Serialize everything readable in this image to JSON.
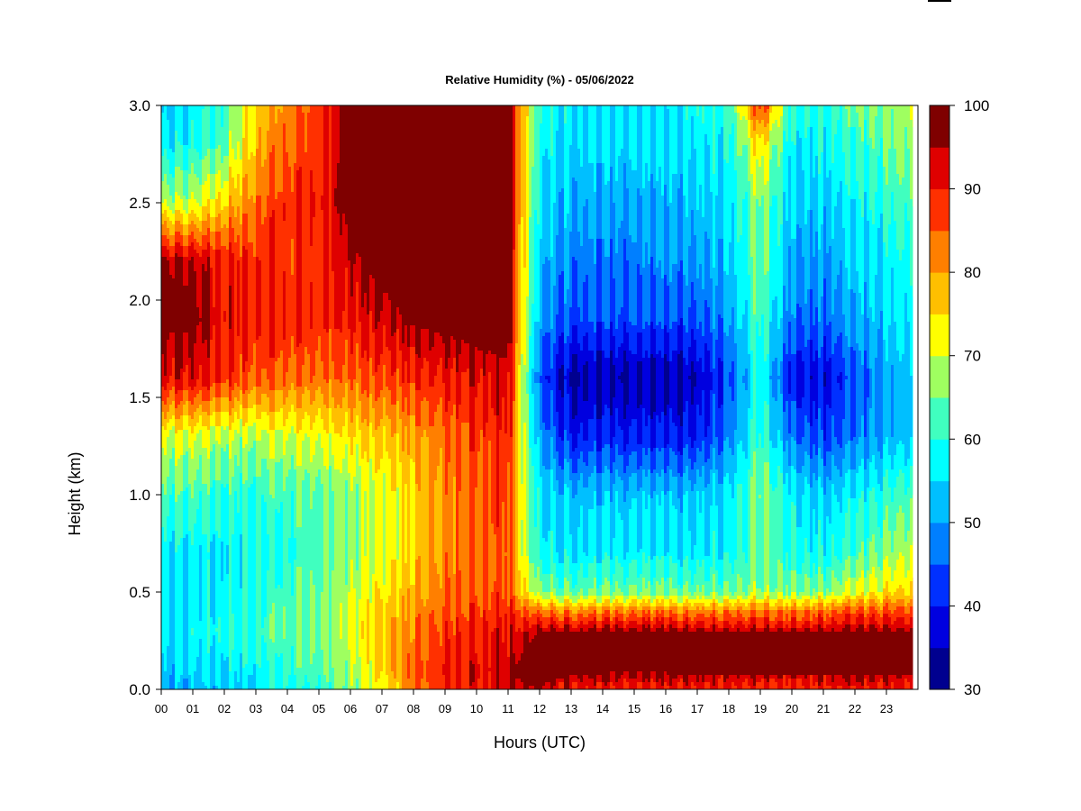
{
  "chart_data": {
    "type": "heatmap",
    "title": "Relative Humidity (%) - 05/06/2022",
    "xlabel": "Hours (UTC)",
    "ylabel": "Height (km)",
    "x_range": [
      0,
      24
    ],
    "y_range": [
      0.0,
      3.0
    ],
    "x_tick_labels": [
      "00",
      "01",
      "02",
      "03",
      "04",
      "05",
      "06",
      "07",
      "08",
      "09",
      "10",
      "11",
      "12",
      "13",
      "14",
      "15",
      "16",
      "17",
      "18",
      "19",
      "20",
      "21",
      "22",
      "23"
    ],
    "y_tick_labels": [
      "0.0",
      "0.5",
      "1.0",
      "1.5",
      "2.0",
      "2.5",
      "3.0"
    ],
    "colorbar": {
      "tick_labels": [
        "30",
        "40",
        "50",
        "60",
        "70",
        "80",
        "90",
        "100"
      ],
      "levels": [
        30,
        35,
        40,
        45,
        50,
        55,
        60,
        65,
        70,
        75,
        80,
        85,
        90,
        95,
        100
      ],
      "colors": [
        "#00008F",
        "#0000DF",
        "#0030FF",
        "#007FFF",
        "#00BFFF",
        "#00FFFF",
        "#40FFBF",
        "#9FFF60",
        "#FFFF00",
        "#FFBF00",
        "#FF7F00",
        "#FF3000",
        "#DF0000",
        "#7F0000"
      ]
    },
    "grid_hours": [
      0,
      1,
      2,
      3,
      4,
      5,
      6,
      7,
      8,
      9,
      10,
      11,
      12,
      13,
      14,
      15,
      16,
      17,
      18,
      19,
      20,
      21,
      22,
      23,
      23.83
    ],
    "grid_heights_km": [
      0.0,
      0.1,
      0.2,
      0.3,
      0.4,
      0.5,
      0.7,
      1.0,
      1.3,
      1.6,
      1.9,
      2.2,
      2.5,
      2.8,
      3.0
    ],
    "humidity_grid": [
      [
        52,
        54,
        55,
        58,
        61,
        63,
        68,
        74,
        85,
        90,
        94,
        96,
        97,
        93,
        92,
        90,
        92,
        92,
        92,
        92,
        92,
        92,
        92,
        92,
        92
      ],
      [
        54,
        56,
        58,
        60,
        63,
        65,
        70,
        76,
        86,
        92,
        95,
        97,
        99,
        99,
        98,
        98,
        98,
        98,
        98,
        98,
        98,
        98,
        98,
        98,
        98
      ],
      [
        56,
        58,
        60,
        62,
        64,
        67,
        71,
        78,
        85,
        90,
        93,
        95,
        99,
        99,
        99,
        99,
        99,
        99,
        99,
        99,
        99,
        99,
        99,
        99,
        99
      ],
      [
        57,
        59,
        61,
        63,
        65,
        68,
        72,
        78,
        84,
        89,
        92,
        94,
        97,
        97,
        97,
        97,
        97,
        97,
        97,
        97,
        97,
        97,
        97,
        97,
        97
      ],
      [
        57,
        58,
        60,
        62,
        65,
        68,
        72,
        77,
        82,
        87,
        90,
        92,
        85,
        84,
        84,
        84,
        84,
        84,
        85,
        86,
        86,
        86,
        87,
        88,
        89
      ],
      [
        57,
        58,
        60,
        62,
        64,
        67,
        71,
        75,
        80,
        85,
        88,
        88,
        68,
        66,
        66,
        66,
        66,
        66,
        67,
        70,
        69,
        68,
        72,
        75,
        78
      ],
      [
        58,
        58,
        59,
        61,
        62,
        65,
        68,
        72,
        77,
        83,
        87,
        87,
        60,
        58,
        58,
        58,
        58,
        58,
        60,
        68,
        62,
        60,
        63,
        68,
        72
      ],
      [
        64,
        64,
        63,
        63,
        64,
        66,
        68,
        72,
        77,
        83,
        88,
        90,
        58,
        55,
        54,
        54,
        54,
        55,
        58,
        70,
        60,
        56,
        58,
        62,
        66
      ],
      [
        72,
        72,
        71,
        71,
        72,
        74,
        76,
        78,
        81,
        85,
        90,
        92,
        52,
        42,
        42,
        41,
        41,
        42,
        50,
        65,
        50,
        45,
        48,
        53,
        56
      ],
      [
        94,
        94,
        91,
        88,
        86,
        86,
        86,
        88,
        90,
        92,
        95,
        96,
        46,
        36,
        35,
        35,
        35,
        37,
        46,
        62,
        42,
        40,
        45,
        52,
        56
      ],
      [
        98,
        98,
        94,
        92,
        91,
        91,
        92,
        95,
        98,
        99,
        99,
        99,
        52,
        46,
        45,
        45,
        45,
        46,
        52,
        66,
        50,
        48,
        52,
        56,
        60
      ],
      [
        97,
        96,
        93,
        91,
        89,
        90,
        96,
        99,
        99,
        99,
        99,
        99,
        55,
        50,
        48,
        48,
        50,
        51,
        56,
        68,
        54,
        52,
        55,
        58,
        62
      ],
      [
        70,
        71,
        78,
        86,
        90,
        92,
        99,
        99,
        99,
        99,
        99,
        99,
        58,
        54,
        52,
        52,
        53,
        55,
        58,
        70,
        57,
        56,
        58,
        62,
        66
      ],
      [
        58,
        60,
        66,
        80,
        86,
        90,
        99,
        99,
        99,
        99,
        99,
        99,
        60,
        57,
        56,
        56,
        56,
        58,
        61,
        78,
        60,
        60,
        62,
        66,
        70
      ],
      [
        55,
        58,
        64,
        80,
        84,
        90,
        99,
        99,
        99,
        99,
        99,
        99,
        62,
        58,
        57,
        57,
        58,
        60,
        62,
        92,
        62,
        62,
        65,
        68,
        72
      ]
    ]
  }
}
